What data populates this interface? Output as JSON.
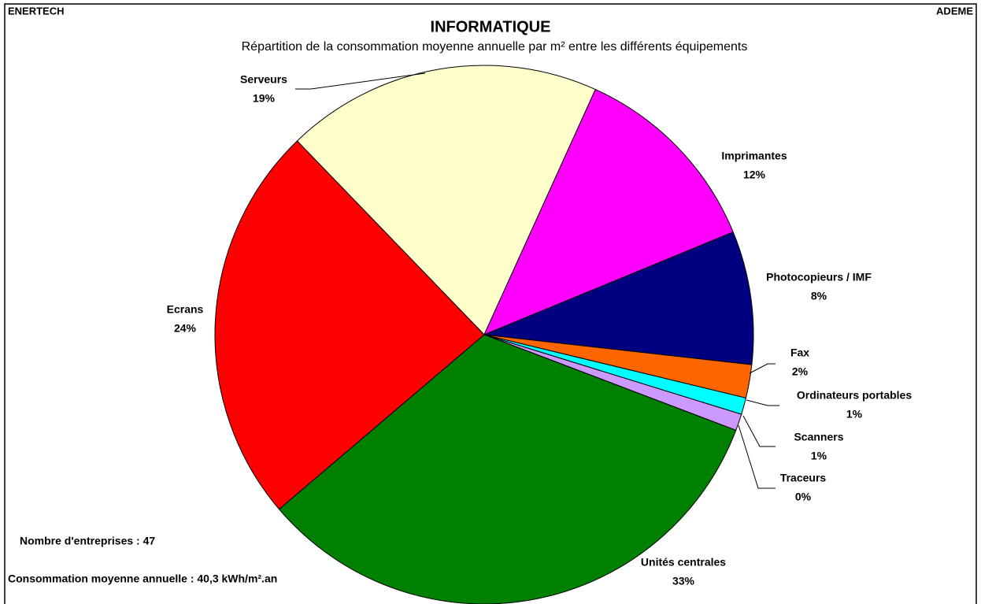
{
  "chart_data": {
    "type": "pie",
    "title": "INFORMATIQUE",
    "subtitle": "Répartition de la consommation moyenne annuelle par m² entre les différents équipements",
    "header_left": "ENERTECH",
    "header_right": "ADEME",
    "annotations": [
      "Nombre d'entreprises  : 47",
      "Consommation moyenne annuelle : 40,3 kWh/m².an"
    ],
    "categories": [
      "Serveurs",
      "Imprimantes",
      "Photocopieurs / IMF",
      "Fax",
      "Ordinateurs portables",
      "Scanners",
      "Traceurs",
      "Unités centrales",
      "Ecrans"
    ],
    "values": [
      19,
      12,
      8,
      2,
      1,
      1,
      0,
      33,
      24
    ],
    "value_labels": [
      "19%",
      "12%",
      "8%",
      "2%",
      "1%",
      "1%",
      "0%",
      "33%",
      "24%"
    ],
    "colors": [
      "#ffffcc",
      "#ff00ff",
      "#000080",
      "#ff6600",
      "#00ffff",
      "#cc99ff",
      "#ffffff",
      "#008000",
      "#ff0000"
    ]
  }
}
